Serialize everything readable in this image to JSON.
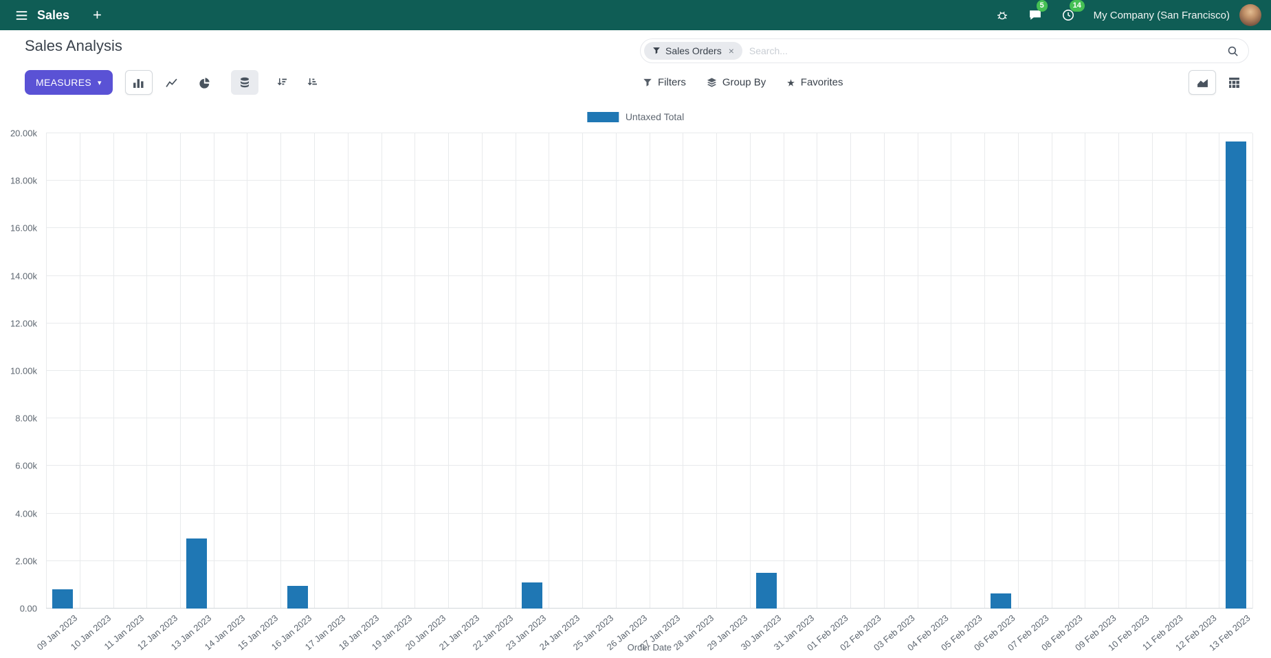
{
  "icons": {
    "star": "★",
    "caret_down": "▾",
    "plus": "+",
    "facet_remove": "×"
  },
  "navbar": {
    "app_name": "Sales",
    "messages_badge": "5",
    "activities_badge": "14",
    "company": "My Company (San Francisco)"
  },
  "control_panel": {
    "title": "Sales Analysis",
    "search": {
      "facet_label": "Sales Orders",
      "placeholder": "Search..."
    },
    "measures_label": "MEASURES",
    "filters_label": "Filters",
    "group_by_label": "Group By",
    "favorites_label": "Favorites"
  },
  "colors": {
    "navbar_bg": "#0f5d55",
    "accent": "#5a52d5",
    "badge_green": "#45c054",
    "bar_blue": "#1f77b4",
    "grid": "#e8eaec"
  },
  "chart_data": {
    "type": "bar",
    "title": "",
    "grid": true,
    "legend_position": "top-center",
    "xlabel": "Order Date",
    "ylabel": "",
    "ylim": [
      0,
      20000
    ],
    "ytick_labels": [
      "0.00",
      "2.00k",
      "4.00k",
      "6.00k",
      "8.00k",
      "10.00k",
      "12.00k",
      "14.00k",
      "16.00k",
      "18.00k",
      "20.00k"
    ],
    "legend": [
      {
        "label": "Untaxed Total",
        "color": "#1f77b4"
      }
    ],
    "categories": [
      "09 Jan 2023",
      "10 Jan 2023",
      "11 Jan 2023",
      "12 Jan 2023",
      "13 Jan 2023",
      "14 Jan 2023",
      "15 Jan 2023",
      "16 Jan 2023",
      "17 Jan 2023",
      "18 Jan 2023",
      "19 Jan 2023",
      "20 Jan 2023",
      "21 Jan 2023",
      "22 Jan 2023",
      "23 Jan 2023",
      "24 Jan 2023",
      "25 Jan 2023",
      "26 Jan 2023",
      "27 Jan 2023",
      "28 Jan 2023",
      "29 Jan 2023",
      "30 Jan 2023",
      "31 Jan 2023",
      "01 Feb 2023",
      "02 Feb 2023",
      "03 Feb 2023",
      "04 Feb 2023",
      "05 Feb 2023",
      "06 Feb 2023",
      "07 Feb 2023",
      "08 Feb 2023",
      "09 Feb 2023",
      "10 Feb 2023",
      "11 Feb 2023",
      "12 Feb 2023",
      "13 Feb 2023"
    ],
    "series": [
      {
        "name": "Untaxed Total",
        "color": "#1f77b4",
        "values": [
          800,
          0,
          0,
          0,
          2950,
          0,
          0,
          950,
          0,
          0,
          0,
          0,
          0,
          0,
          1100,
          0,
          0,
          0,
          0,
          0,
          0,
          1500,
          0,
          0,
          0,
          0,
          0,
          0,
          650,
          0,
          0,
          0,
          0,
          0,
          0,
          19650
        ]
      }
    ]
  }
}
